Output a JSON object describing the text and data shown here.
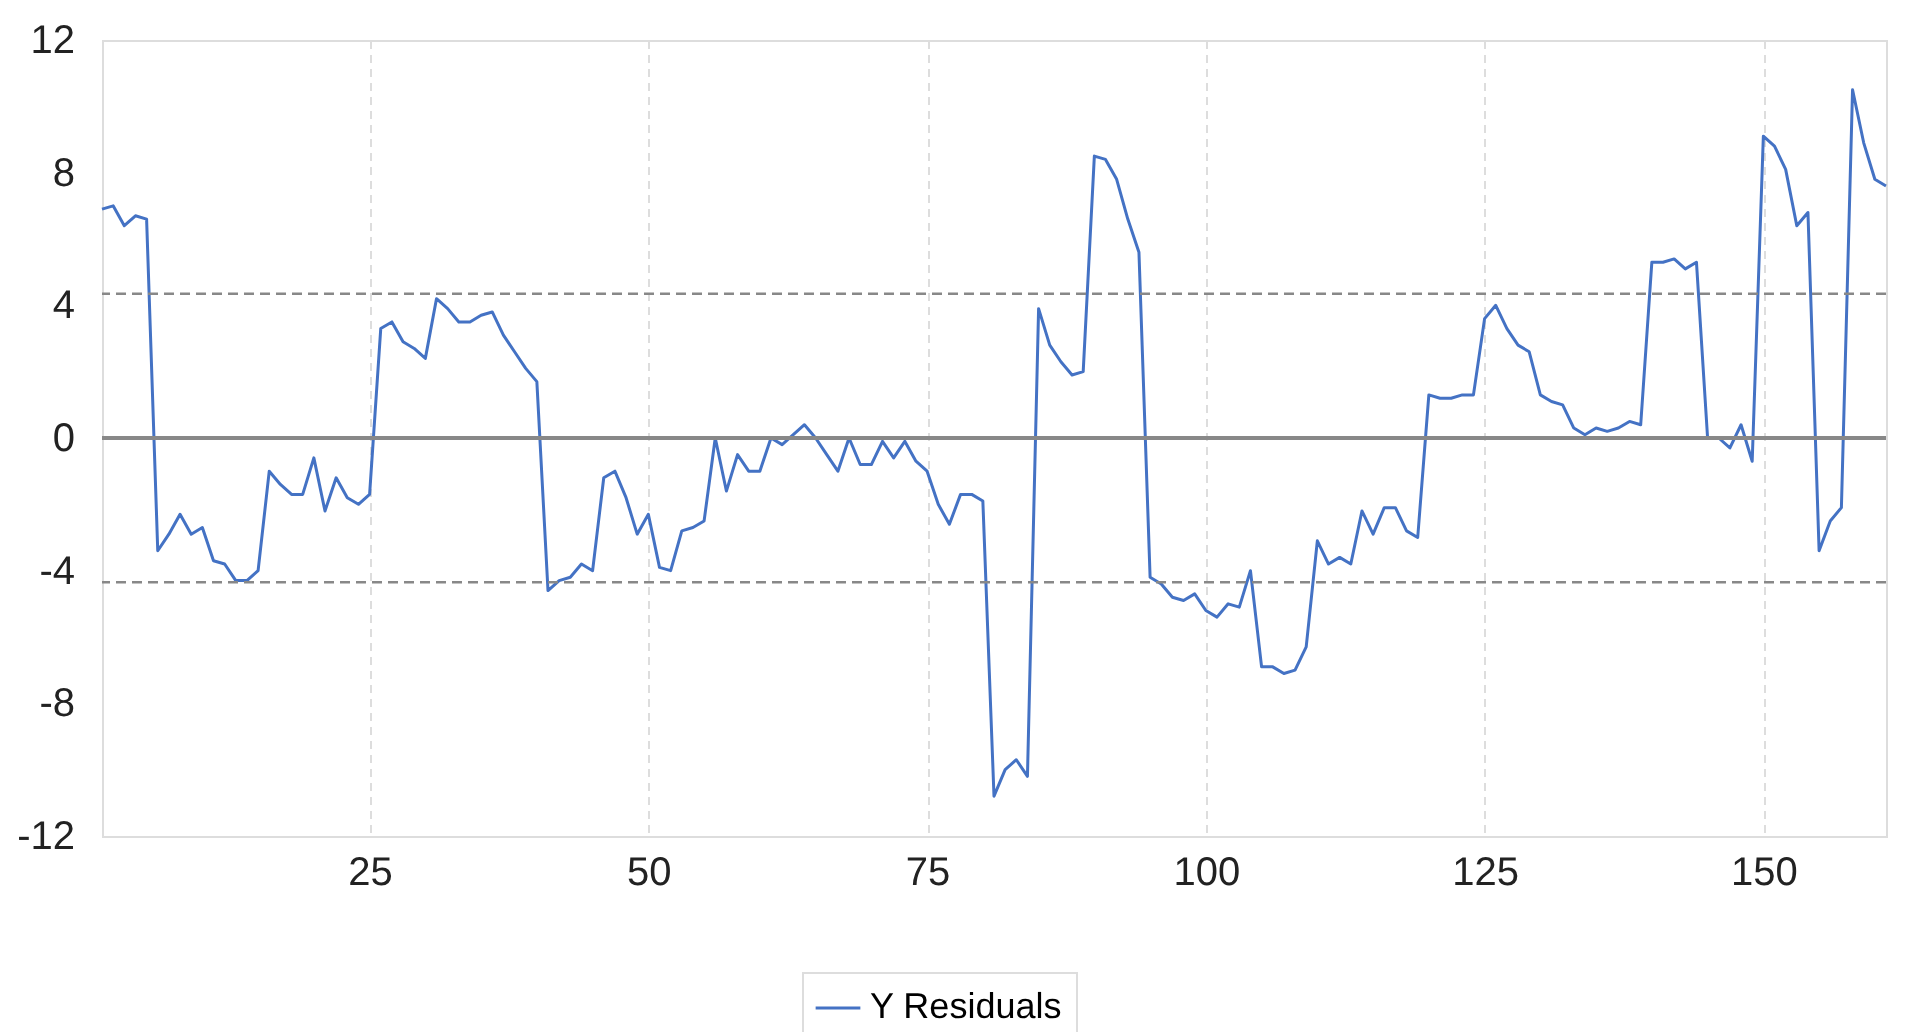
{
  "chart_data": {
    "type": "line",
    "x": [
      1,
      2,
      3,
      4,
      5,
      6,
      7,
      8,
      9,
      10,
      11,
      12,
      13,
      14,
      15,
      16,
      17,
      18,
      19,
      20,
      21,
      22,
      23,
      24,
      25,
      26,
      27,
      28,
      29,
      30,
      31,
      32,
      33,
      34,
      35,
      36,
      37,
      38,
      39,
      40,
      41,
      42,
      43,
      44,
      45,
      46,
      47,
      48,
      49,
      50,
      51,
      52,
      53,
      54,
      55,
      56,
      57,
      58,
      59,
      60,
      61,
      62,
      63,
      64,
      65,
      66,
      67,
      68,
      69,
      70,
      71,
      72,
      73,
      74,
      75,
      76,
      77,
      78,
      79,
      80,
      81,
      82,
      83,
      84,
      85,
      86,
      87,
      88,
      89,
      90,
      91,
      92,
      93,
      94,
      95,
      96,
      97,
      98,
      99,
      100,
      101,
      102,
      103,
      104,
      105,
      106,
      107,
      108,
      109,
      110,
      111,
      112,
      113,
      114,
      115,
      116,
      117,
      118,
      119,
      120,
      121,
      122,
      123,
      124,
      125,
      126,
      127,
      128,
      129,
      130,
      131,
      132,
      133,
      134,
      135,
      136,
      137,
      138,
      139,
      140,
      141,
      142,
      143,
      144,
      145,
      146,
      147,
      148,
      149,
      150,
      151,
      152,
      153,
      154,
      155,
      156,
      157,
      158,
      159,
      160,
      161
    ],
    "series": [
      {
        "name": "Y Residuals",
        "color": "#4472c4",
        "values": [
          6.9,
          7.0,
          6.4,
          6.7,
          6.6,
          -3.4,
          -2.9,
          -2.3,
          -2.9,
          -2.7,
          -3.7,
          -3.8,
          -4.3,
          -4.3,
          -4.0,
          -1.0,
          -1.4,
          -1.7,
          -1.7,
          -0.6,
          -2.2,
          -1.2,
          -1.8,
          -2.0,
          -1.7,
          3.3,
          3.5,
          2.9,
          2.7,
          2.4,
          4.2,
          3.9,
          3.5,
          3.5,
          3.7,
          3.8,
          3.1,
          2.6,
          2.1,
          1.7,
          -4.6,
          -4.3,
          -4.2,
          -3.8,
          -4.0,
          -1.2,
          -1.0,
          -1.8,
          -2.9,
          -2.3,
          -3.9,
          -4.0,
          -2.8,
          -2.7,
          -2.5,
          0.0,
          -1.6,
          -0.5,
          -1.0,
          -1.0,
          0.0,
          -0.2,
          0.1,
          0.4,
          0.0,
          -0.5,
          -1.0,
          0.0,
          -0.8,
          -0.8,
          -0.1,
          -0.6,
          -0.1,
          -0.7,
          -1.0,
          -2.0,
          -2.6,
          -1.7,
          -1.7,
          -1.9,
          -10.8,
          -10.0,
          -9.7,
          -10.2,
          3.9,
          2.8,
          2.3,
          1.9,
          2.0,
          8.5,
          8.4,
          7.8,
          6.6,
          5.6,
          -4.2,
          -4.4,
          -4.8,
          -4.9,
          -4.7,
          -5.2,
          -5.4,
          -5.0,
          -5.1,
          -4.0,
          -6.9,
          -6.9,
          -7.1,
          -7.0,
          -6.3,
          -3.1,
          -3.8,
          -3.6,
          -3.8,
          -2.2,
          -2.9,
          -2.1,
          -2.1,
          -2.8,
          -3.0,
          1.3,
          1.2,
          1.2,
          1.3,
          1.3,
          3.6,
          4.0,
          3.3,
          2.8,
          2.6,
          1.3,
          1.1,
          1.0,
          0.3,
          0.1,
          0.3,
          0.2,
          0.3,
          0.5,
          0.4,
          5.3,
          5.3,
          5.4,
          5.1,
          5.3,
          0.0,
          0.0,
          -0.3,
          0.4,
          -0.7,
          9.1,
          8.8,
          8.1,
          6.4,
          6.8,
          -3.4,
          -2.5,
          -2.1,
          10.5,
          8.9,
          7.8,
          7.6
        ]
      }
    ],
    "xlim": [
      1,
      161
    ],
    "xticks": [
      25,
      50,
      75,
      100,
      125,
      150
    ],
    "ylim": [
      -12,
      12
    ],
    "yticks": [
      -12,
      -8,
      -4,
      0,
      4,
      8,
      12
    ],
    "grid": "x",
    "legend": "bottom",
    "line_style": "solid",
    "marker": "none",
    "ref_lines": [
      {
        "axis": "y",
        "value": 0,
        "label": null,
        "color": "#888888",
        "line_style": "solid"
      },
      {
        "axis": "y",
        "value": 4.35,
        "label": null,
        "color": "#888888",
        "line_style": "dashed"
      },
      {
        "axis": "y",
        "value": -4.35,
        "label": null,
        "color": "#888888",
        "line_style": "dashed"
      }
    ]
  }
}
